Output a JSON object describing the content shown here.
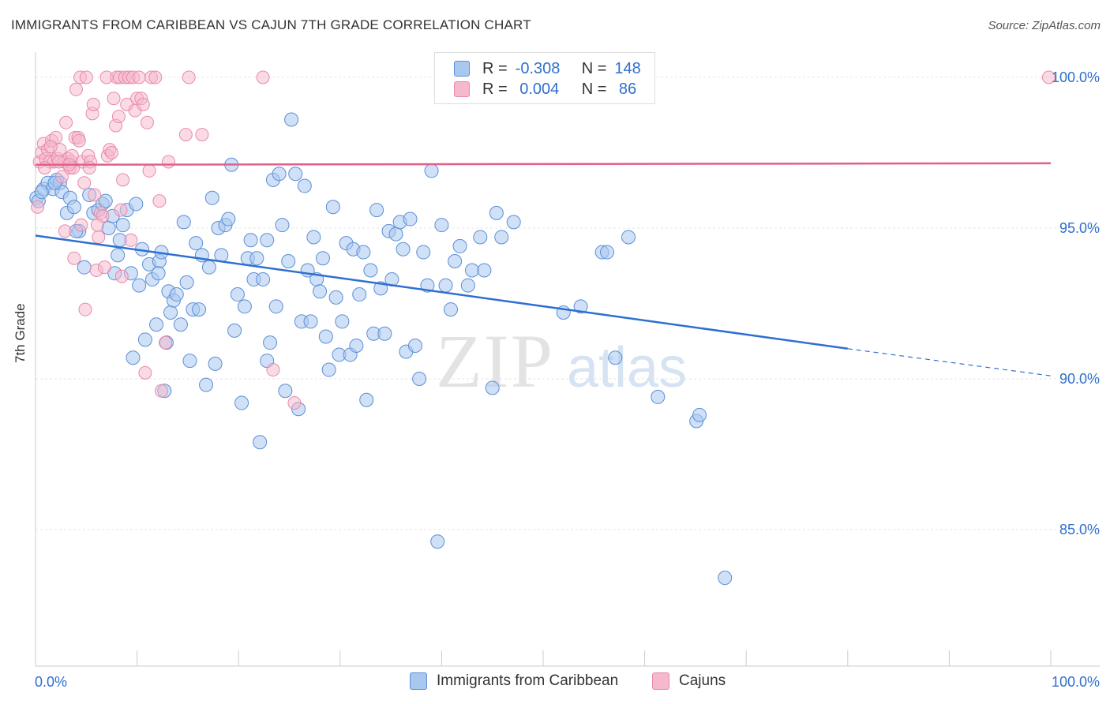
{
  "header": {
    "title": "IMMIGRANTS FROM CARIBBEAN VS CAJUN 7TH GRADE CORRELATION CHART",
    "source": "Source: ZipAtlas.com"
  },
  "watermark": {
    "zip": "ZIP",
    "atlas": "atlas"
  },
  "legend": {
    "r_label": "R =",
    "n_label": "N =",
    "series1": {
      "r": "-0.308",
      "n": "148"
    },
    "series2": {
      "r": " 0.004",
      "n": " 86"
    }
  },
  "colors": {
    "blue_fill": "#a9c8f0",
    "blue_stroke": "#5b8fd6",
    "blue_line": "#2f6fd0",
    "pink_fill": "#f5b8cc",
    "pink_stroke": "#e88aa8",
    "pink_line": "#e0608a",
    "tick_text": "#2f6fd0",
    "grid": "#e4e4e4"
  },
  "chart_data": {
    "type": "scatter",
    "title": "IMMIGRANTS FROM CARIBBEAN VS CAJUN 7TH GRADE CORRELATION CHART",
    "xlabel": "",
    "ylabel": "7th Grade",
    "xlim": [
      0,
      100
    ],
    "ylim": [
      80.5,
      100.8
    ],
    "x_tick_labels": [
      "0.0%",
      "100.0%"
    ],
    "y_ticks": [
      {
        "value": 100,
        "label": "100.0%"
      },
      {
        "value": 95,
        "label": "95.0%"
      },
      {
        "value": 90,
        "label": "90.0%"
      },
      {
        "value": 85,
        "label": "85.0%"
      }
    ],
    "grid": true,
    "legend_position": "top-center",
    "series": [
      {
        "name": "Immigrants from Caribbean",
        "color": "#a9c8f0",
        "r": -0.308,
        "n": 148,
        "trend": {
          "x": [
            0,
            80
          ],
          "y": [
            94.75,
            91.0
          ],
          "dashed_to": [
            100,
            90.1
          ]
        },
        "points": [
          [
            0.1,
            96.0
          ],
          [
            0.3,
            95.9
          ],
          [
            0.8,
            96.3
          ],
          [
            1.2,
            96.5
          ],
          [
            1.7,
            96.3
          ],
          [
            2.1,
            96.6
          ],
          [
            2.4,
            96.5
          ],
          [
            2.6,
            96.2
          ],
          [
            3.1,
            95.5
          ],
          [
            3.4,
            96.0
          ],
          [
            3.8,
            95.7
          ],
          [
            4.3,
            94.9
          ],
          [
            4.8,
            93.7
          ],
          [
            5.3,
            96.1
          ],
          [
            5.7,
            95.5
          ],
          [
            6.2,
            95.6
          ],
          [
            6.6,
            95.8
          ],
          [
            6.9,
            95.9
          ],
          [
            7.2,
            95.0
          ],
          [
            7.6,
            95.4
          ],
          [
            8.1,
            94.1
          ],
          [
            8.3,
            94.6
          ],
          [
            8.6,
            95.1
          ],
          [
            9.0,
            95.6
          ],
          [
            9.4,
            93.5
          ],
          [
            9.6,
            90.7
          ],
          [
            9.9,
            95.8
          ],
          [
            10.2,
            93.1
          ],
          [
            10.5,
            94.3
          ],
          [
            10.8,
            91.3
          ],
          [
            11.2,
            93.8
          ],
          [
            11.5,
            93.3
          ],
          [
            11.9,
            91.8
          ],
          [
            12.2,
            93.9
          ],
          [
            12.4,
            94.2
          ],
          [
            12.7,
            89.6
          ],
          [
            12.9,
            91.2
          ],
          [
            13.1,
            92.9
          ],
          [
            13.3,
            92.2
          ],
          [
            13.6,
            92.6
          ],
          [
            13.9,
            92.8
          ],
          [
            14.3,
            91.8
          ],
          [
            14.6,
            95.2
          ],
          [
            14.9,
            93.2
          ],
          [
            15.2,
            90.6
          ],
          [
            15.5,
            92.3
          ],
          [
            15.8,
            94.5
          ],
          [
            16.1,
            92.3
          ],
          [
            16.4,
            94.1
          ],
          [
            16.8,
            89.8
          ],
          [
            17.1,
            93.7
          ],
          [
            17.4,
            96.0
          ],
          [
            17.7,
            90.5
          ],
          [
            18.0,
            95.0
          ],
          [
            18.3,
            94.1
          ],
          [
            18.7,
            95.1
          ],
          [
            19.0,
            95.3
          ],
          [
            19.3,
            97.1
          ],
          [
            19.6,
            91.6
          ],
          [
            19.9,
            92.8
          ],
          [
            20.3,
            89.2
          ],
          [
            20.6,
            92.4
          ],
          [
            20.9,
            94.0
          ],
          [
            21.2,
            94.6
          ],
          [
            21.5,
            93.3
          ],
          [
            21.8,
            94.0
          ],
          [
            22.1,
            87.9
          ],
          [
            22.4,
            93.3
          ],
          [
            22.8,
            94.6
          ],
          [
            23.1,
            91.2
          ],
          [
            23.4,
            96.6
          ],
          [
            23.7,
            92.4
          ],
          [
            24.0,
            96.8
          ],
          [
            24.3,
            95.1
          ],
          [
            24.6,
            89.6
          ],
          [
            24.9,
            93.9
          ],
          [
            25.2,
            98.6
          ],
          [
            25.6,
            96.8
          ],
          [
            25.9,
            89.0
          ],
          [
            26.2,
            91.9
          ],
          [
            26.5,
            96.4
          ],
          [
            26.8,
            93.6
          ],
          [
            27.1,
            91.9
          ],
          [
            27.4,
            94.7
          ],
          [
            27.7,
            93.3
          ],
          [
            28.0,
            92.9
          ],
          [
            28.3,
            94.0
          ],
          [
            28.6,
            91.4
          ],
          [
            28.9,
            90.3
          ],
          [
            29.3,
            95.7
          ],
          [
            29.6,
            92.7
          ],
          [
            29.9,
            90.8
          ],
          [
            30.2,
            91.9
          ],
          [
            30.6,
            94.5
          ],
          [
            31.0,
            90.8
          ],
          [
            31.3,
            94.3
          ],
          [
            31.6,
            91.1
          ],
          [
            31.9,
            92.8
          ],
          [
            32.3,
            94.2
          ],
          [
            32.6,
            89.3
          ],
          [
            33.0,
            93.6
          ],
          [
            33.3,
            91.5
          ],
          [
            33.6,
            95.6
          ],
          [
            34.0,
            93.0
          ],
          [
            34.4,
            91.5
          ],
          [
            34.8,
            94.9
          ],
          [
            35.1,
            93.3
          ],
          [
            35.5,
            94.8
          ],
          [
            35.9,
            95.2
          ],
          [
            36.2,
            94.3
          ],
          [
            36.5,
            90.9
          ],
          [
            36.9,
            95.3
          ],
          [
            37.4,
            91.1
          ],
          [
            37.8,
            90.0
          ],
          [
            38.2,
            94.2
          ],
          [
            38.6,
            93.1
          ],
          [
            39.0,
            96.9
          ],
          [
            39.6,
            84.6
          ],
          [
            40.0,
            95.1
          ],
          [
            40.4,
            93.1
          ],
          [
            40.9,
            92.3
          ],
          [
            41.3,
            93.9
          ],
          [
            41.8,
            94.4
          ],
          [
            42.6,
            93.1
          ],
          [
            43.0,
            93.6
          ],
          [
            43.8,
            94.7
          ],
          [
            44.2,
            93.6
          ],
          [
            45.0,
            89.7
          ],
          [
            45.4,
            95.5
          ],
          [
            45.9,
            94.7
          ],
          [
            47.1,
            95.2
          ],
          [
            50.3,
            100.0
          ],
          [
            52.0,
            92.2
          ],
          [
            53.7,
            92.4
          ],
          [
            55.8,
            94.2
          ],
          [
            56.3,
            94.2
          ],
          [
            57.1,
            90.7
          ],
          [
            58.4,
            94.7
          ],
          [
            61.3,
            89.4
          ],
          [
            65.1,
            88.6
          ],
          [
            65.4,
            88.8
          ],
          [
            67.9,
            83.4
          ],
          [
            0.6,
            96.2
          ],
          [
            7.8,
            93.5
          ],
          [
            1.9,
            96.5
          ],
          [
            4.0,
            94.9
          ],
          [
            12.1,
            93.5
          ],
          [
            22.8,
            90.6
          ]
        ]
      },
      {
        "name": "Cajuns",
        "color": "#f5b8cc",
        "r": 0.004,
        "n": 86,
        "trend": {
          "x": [
            0,
            100
          ],
          "y": [
            97.1,
            97.15
          ]
        },
        "points": [
          [
            0.2,
            95.7
          ],
          [
            0.4,
            97.2
          ],
          [
            0.6,
            97.5
          ],
          [
            0.8,
            97.8
          ],
          [
            1.0,
            97.3
          ],
          [
            1.2,
            97.6
          ],
          [
            1.4,
            97.2
          ],
          [
            1.6,
            97.9
          ],
          [
            1.8,
            97.2
          ],
          [
            2.0,
            98.0
          ],
          [
            2.2,
            97.3
          ],
          [
            2.4,
            97.6
          ],
          [
            2.6,
            96.7
          ],
          [
            2.8,
            97.2
          ],
          [
            2.9,
            94.9
          ],
          [
            3.0,
            98.5
          ],
          [
            3.2,
            97.3
          ],
          [
            3.4,
            97.0
          ],
          [
            3.5,
            97.2
          ],
          [
            3.6,
            97.4
          ],
          [
            3.7,
            97.0
          ],
          [
            3.8,
            94.0
          ],
          [
            3.9,
            98.0
          ],
          [
            4.0,
            99.6
          ],
          [
            4.2,
            98.0
          ],
          [
            4.4,
            100.0
          ],
          [
            4.5,
            95.1
          ],
          [
            4.6,
            97.2
          ],
          [
            4.8,
            96.5
          ],
          [
            4.9,
            92.3
          ],
          [
            5.0,
            100.0
          ],
          [
            5.2,
            97.4
          ],
          [
            5.4,
            97.2
          ],
          [
            5.6,
            98.8
          ],
          [
            5.7,
            99.1
          ],
          [
            5.8,
            96.1
          ],
          [
            6.0,
            93.6
          ],
          [
            6.2,
            94.7
          ],
          [
            6.4,
            95.5
          ],
          [
            6.6,
            95.4
          ],
          [
            6.8,
            93.7
          ],
          [
            7.0,
            100.0
          ],
          [
            7.1,
            97.4
          ],
          [
            7.3,
            97.6
          ],
          [
            7.5,
            97.5
          ],
          [
            7.7,
            99.3
          ],
          [
            7.9,
            98.4
          ],
          [
            8.0,
            100.0
          ],
          [
            8.2,
            98.7
          ],
          [
            8.3,
            100.0
          ],
          [
            8.4,
            95.6
          ],
          [
            8.5,
            93.4
          ],
          [
            8.6,
            96.6
          ],
          [
            8.8,
            100.0
          ],
          [
            9.0,
            99.1
          ],
          [
            9.2,
            100.0
          ],
          [
            9.4,
            94.6
          ],
          [
            9.6,
            100.0
          ],
          [
            9.8,
            98.9
          ],
          [
            10.0,
            99.3
          ],
          [
            10.2,
            100.0
          ],
          [
            10.4,
            99.3
          ],
          [
            10.6,
            99.1
          ],
          [
            10.8,
            90.2
          ],
          [
            11.0,
            98.5
          ],
          [
            11.2,
            96.9
          ],
          [
            11.4,
            100.0
          ],
          [
            11.8,
            100.0
          ],
          [
            12.2,
            95.9
          ],
          [
            12.4,
            89.6
          ],
          [
            12.8,
            91.2
          ],
          [
            13.1,
            97.2
          ],
          [
            14.8,
            98.1
          ],
          [
            15.1,
            100.0
          ],
          [
            16.4,
            98.1
          ],
          [
            22.4,
            100.0
          ],
          [
            23.4,
            90.3
          ],
          [
            25.5,
            89.2
          ],
          [
            99.8,
            100.0
          ],
          [
            0.9,
            97.0
          ],
          [
            1.5,
            97.7
          ],
          [
            2.3,
            97.2
          ],
          [
            3.3,
            97.1
          ],
          [
            4.3,
            97.9
          ],
          [
            5.3,
            97.0
          ],
          [
            6.1,
            95.1
          ]
        ]
      }
    ]
  }
}
